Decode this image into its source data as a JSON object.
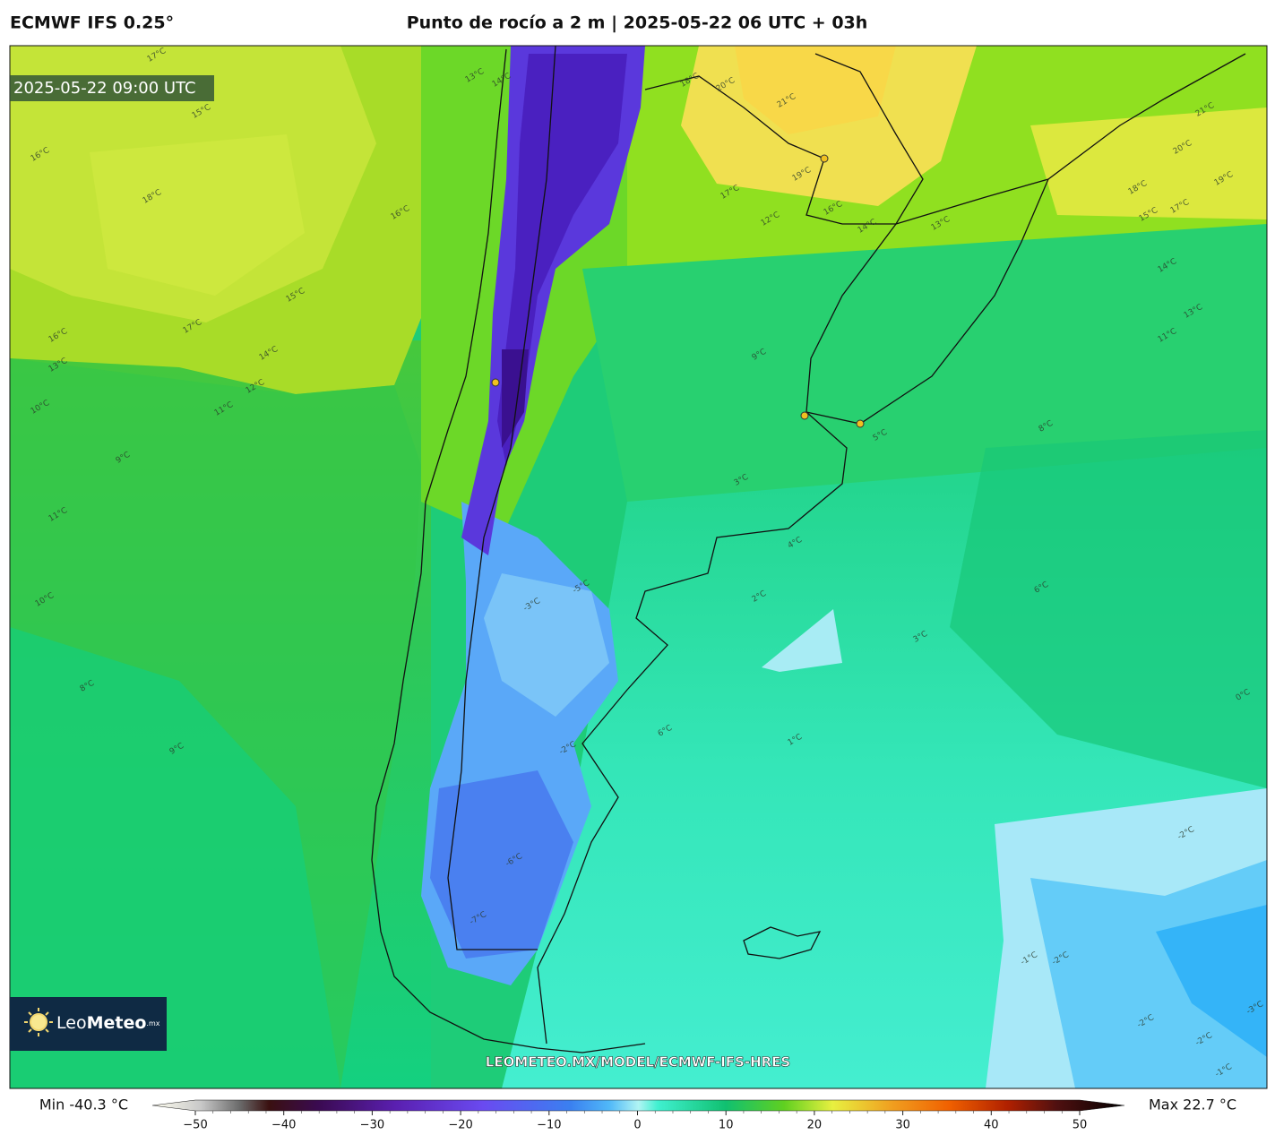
{
  "header": {
    "model": "ECMWF IFS 0.25°",
    "title": "Punto de rocío a 2 m | 2025-05-22 06 UTC + 03h"
  },
  "map": {
    "timestamp": "2025-05-22 09:00 UTC",
    "watermark": "LEOMETEO.MX/MODEL/ECMWF-IFS-HRES",
    "logo": {
      "light": "Leo",
      "bold": "Meteo",
      "suffix": ".mx"
    },
    "contour_labels": [
      "17°C",
      "16°C",
      "18°C",
      "16°C",
      "15°C",
      "17°C",
      "16°C",
      "13°C",
      "14°C",
      "12°C",
      "11°C",
      "10°C",
      "9°C",
      "11°C",
      "10°C",
      "8°C",
      "9°C",
      "13°C",
      "14°C",
      "15°C",
      "18°C",
      "20°C",
      "21°C",
      "19°C",
      "17°C",
      "16°C",
      "12°C",
      "14°C",
      "13°C",
      "18°C",
      "15°C",
      "17°C",
      "19°C",
      "14°C",
      "13°C",
      "11°C",
      "20°C",
      "21°C",
      "9°C",
      "8°C",
      "6°C",
      "5°C",
      "3°C",
      "4°C",
      "2°C",
      "-3°C",
      "-5°C",
      "-6°C",
      "-7°C",
      "-2°C",
      "1°C",
      "0°C",
      "3°C",
      "6°C",
      "-1°C",
      "-2°C",
      "-2°C",
      "-3°C",
      "-2°C",
      "-1°C",
      "-2°C"
    ]
  },
  "colorbar": {
    "min_label": "Min -40.3 °C",
    "max_label": "Max 22.7 °C",
    "range": [
      -50,
      50
    ],
    "ticks": [
      {
        "value": -50,
        "label": "−50"
      },
      {
        "value": -40,
        "label": "−40"
      },
      {
        "value": -30,
        "label": "−30"
      },
      {
        "value": -20,
        "label": "−20"
      },
      {
        "value": -10,
        "label": "−10"
      },
      0,
      10,
      20,
      30,
      40,
      50
    ]
  }
}
